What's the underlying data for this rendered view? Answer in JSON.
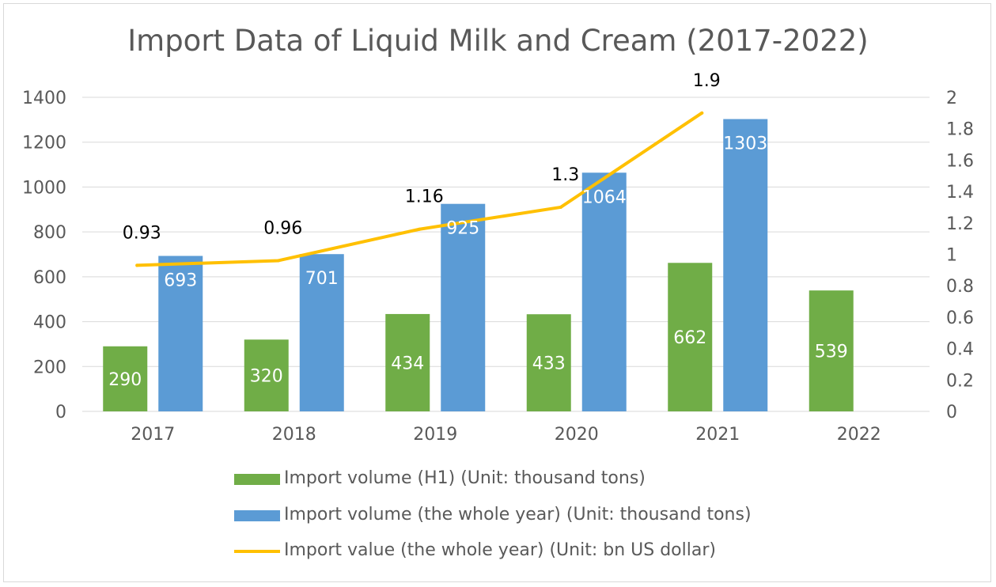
{
  "chart_data": {
    "type": "bar",
    "title": "Import Data of Liquid Milk and Cream (2017-2022)",
    "categories": [
      "2017",
      "2018",
      "2019",
      "2020",
      "2021",
      "2022"
    ],
    "y_left": {
      "min": 0,
      "max": 1400,
      "step": 200,
      "ticks": [
        "0",
        "200",
        "400",
        "600",
        "800",
        "1000",
        "1200",
        "1400"
      ]
    },
    "y_right": {
      "min": 0,
      "max": 2,
      "step": 0.2,
      "ticks": [
        "0",
        "0.2",
        "0.4",
        "0.6",
        "0.8",
        "1",
        "1.2",
        "1.4",
        "1.6",
        "1.8",
        "2"
      ]
    },
    "grid": true,
    "legend_position": "bottom",
    "series": [
      {
        "name": "Import volume (H1) (Unit: thousand tons)",
        "kind": "bar",
        "axis": "left",
        "color": "#70ad47",
        "values": [
          290,
          320,
          434,
          433,
          662,
          539
        ]
      },
      {
        "name": "Import volume (the whole year) (Unit: thousand tons)",
        "kind": "bar",
        "axis": "left",
        "color": "#5b9bd5",
        "values": [
          693,
          701,
          925,
          1064,
          1303,
          null
        ]
      },
      {
        "name": "Import value (the whole year) (Unit: bn US dollar)",
        "kind": "line",
        "axis": "right",
        "color": "#ffc000",
        "values": [
          0.93,
          0.96,
          1.16,
          1.3,
          1.9,
          null
        ]
      }
    ]
  }
}
